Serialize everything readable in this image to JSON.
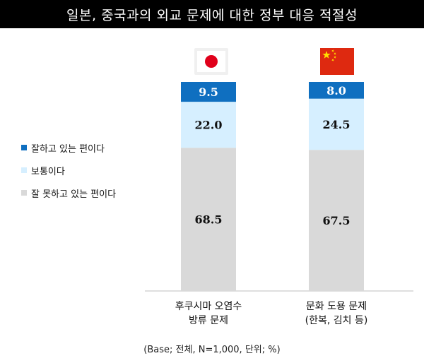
{
  "chart_data": {
    "type": "bar",
    "stacked": true,
    "orientation": "vertical",
    "percent_stacked": true,
    "title": "일본, 중국과의 외교 문제에 대한 정부 대응 적절성",
    "categories": [
      {
        "line1": "후쿠시마 오염수",
        "line2": "방류 문제",
        "flag_icon": "japan-flag-icon"
      },
      {
        "line1": "문화 도용 문제",
        "line2": "(한복, 김치 등)",
        "flag_icon": "china-flag-icon"
      }
    ],
    "series": [
      {
        "name": "잘 못하고 있는 편이다",
        "color": "#d9d9d9",
        "values": [
          68.5,
          67.5
        ],
        "labels": [
          "68.5",
          "67.5"
        ],
        "label_color": "#111111"
      },
      {
        "name": "보통이다",
        "color": "#d6efff",
        "values": [
          22.0,
          24.5
        ],
        "labels": [
          "22.0",
          "24.5"
        ],
        "label_color": "#111111"
      },
      {
        "name": "잘하고 있는 편이다",
        "color": "#0f6fc0",
        "values": [
          9.5,
          8.0
        ],
        "labels": [
          "9.5",
          "8.0"
        ],
        "label_color": "#ffffff"
      }
    ],
    "legend_order": [
      "잘하고 있는 편이다",
      "보통이다",
      "잘 못하고 있는 편이다"
    ],
    "legend_placement": "left",
    "grid": false,
    "ylim": [
      0,
      100
    ]
  },
  "footnote": "(Base; 전체, N=1,000, 단위; %)",
  "colors": {
    "japan_sun": "#e0001b",
    "china_red": "#de2910",
    "china_star": "#ffde00",
    "baseline": "#bfbfbf"
  }
}
